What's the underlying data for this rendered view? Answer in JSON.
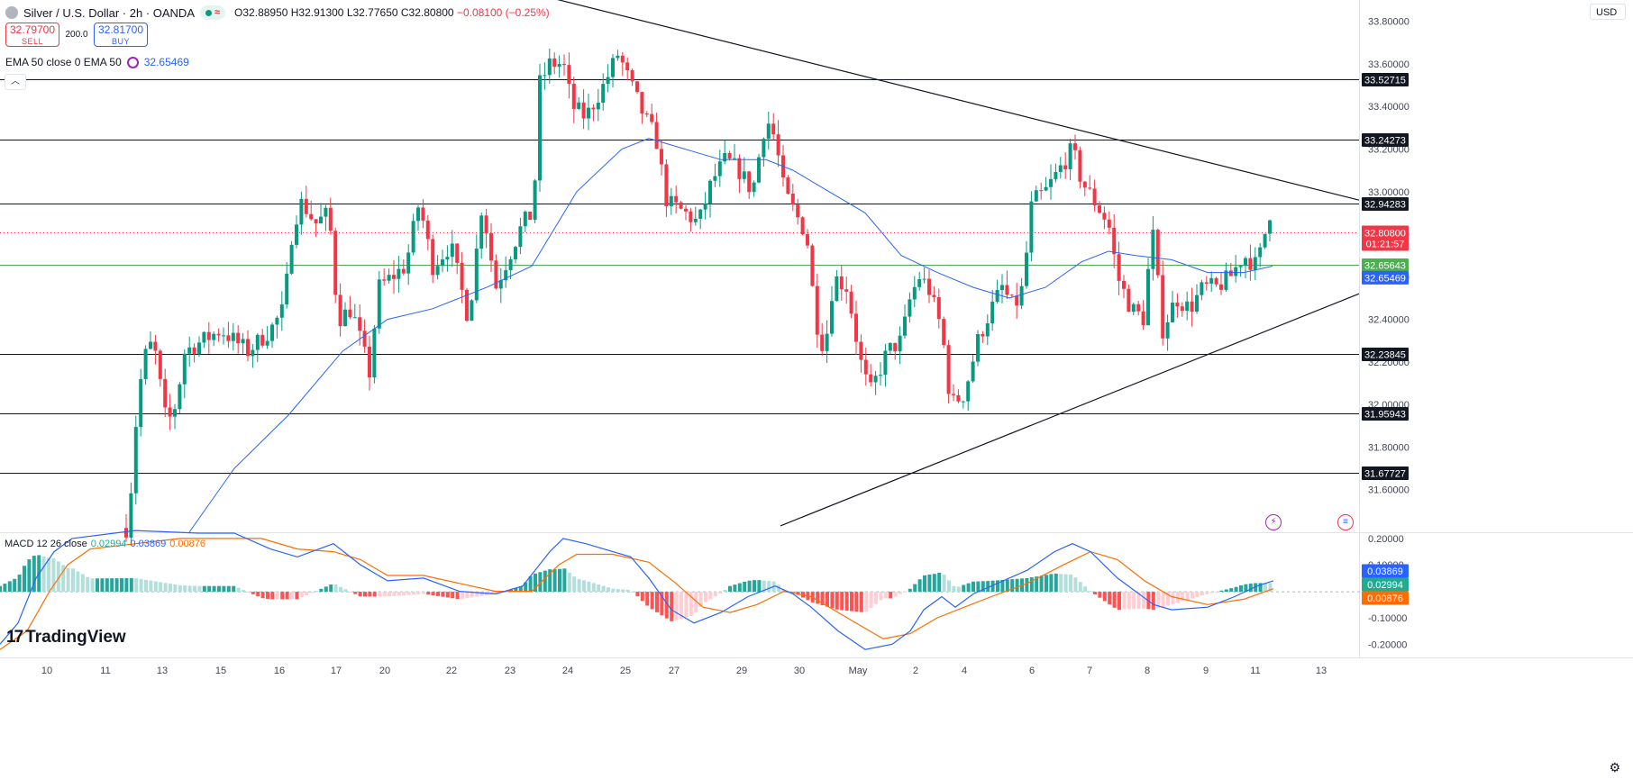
{
  "header": {
    "title": "Silver / U.S. Dollar · 2h · OANDA",
    "ohlc": "O32.88950 H32.91300 L32.77650 C32.80800",
    "change": "−0.08100 (−0.25%)"
  },
  "trade": {
    "sell_price": "32.79700",
    "sell_label": "SELL",
    "spread": "200.0",
    "buy_price": "32.81700",
    "buy_label": "BUY"
  },
  "indicators": {
    "ema_label": "EMA 50 close 0 EMA 50",
    "ema_value": "32.65469",
    "macd_label": "MACD 12 26 close",
    "macd_hist": "0.02994",
    "macd_line": "0.03869",
    "macd_signal": "0.00876"
  },
  "currency_button": "USD",
  "brand": "TradingView",
  "colors": {
    "up": "#089981",
    "down": "#f23645",
    "ema": "#2962ff",
    "macd": "#2962ff",
    "signal": "#ff6d00",
    "support_green": "#4caf50"
  },
  "chart_data": {
    "type": "candlestick",
    "instrument": "Silver / U.S. Dollar",
    "timeframe": "2h",
    "ylim": [
      31.4,
      33.9
    ],
    "y_ticks": [
      "33.80000",
      "33.60000",
      "33.40000",
      "33.20000",
      "33.00000",
      "32.80000",
      "32.60000",
      "32.40000",
      "32.20000",
      "32.00000",
      "31.80000",
      "31.60000"
    ],
    "x_ticks": [
      {
        "label": "10",
        "pos": 52
      },
      {
        "label": "11",
        "pos": 117
      },
      {
        "label": "13",
        "pos": 180
      },
      {
        "label": "15",
        "pos": 245
      },
      {
        "label": "16",
        "pos": 310
      },
      {
        "label": "17",
        "pos": 373
      },
      {
        "label": "20",
        "pos": 427
      },
      {
        "label": "22",
        "pos": 501
      },
      {
        "label": "23",
        "pos": 566
      },
      {
        "label": "24",
        "pos": 630
      },
      {
        "label": "25",
        "pos": 694
      },
      {
        "label": "27",
        "pos": 748
      },
      {
        "label": "29",
        "pos": 823
      },
      {
        "label": "30",
        "pos": 887
      },
      {
        "label": "May",
        "pos": 952
      },
      {
        "label": "2",
        "pos": 1016
      },
      {
        "label": "4",
        "pos": 1070
      },
      {
        "label": "6",
        "pos": 1145
      },
      {
        "label": "7",
        "pos": 1209
      },
      {
        "label": "8",
        "pos": 1273
      },
      {
        "label": "9",
        "pos": 1338
      },
      {
        "label": "11",
        "pos": 1393
      },
      {
        "label": "13",
        "pos": 1466
      }
    ],
    "horizontal_levels": [
      {
        "value": 33.52715,
        "label": "33.52715",
        "color": "#131722"
      },
      {
        "value": 33.24273,
        "label": "33.24273",
        "color": "#131722"
      },
      {
        "value": 32.94283,
        "label": "32.94283",
        "color": "#131722"
      },
      {
        "value": 32.65643,
        "label": "32.65643",
        "color": "#4caf50"
      },
      {
        "value": 32.23845,
        "label": "32.23845",
        "color": "#131722"
      },
      {
        "value": 31.95943,
        "label": "31.95943",
        "color": "#131722"
      },
      {
        "value": 31.67727,
        "label": "31.67727",
        "color": "#131722"
      }
    ],
    "last_price": {
      "value": 32.808,
      "label": "32.80800",
      "countdown": "01:21:57"
    },
    "ema_last": {
      "value": 32.65469,
      "label": "32.65469"
    },
    "trendlines": [
      {
        "from": [
          545,
          33.98
        ],
        "to": [
          1508,
          32.96
        ]
      },
      {
        "from": [
          866,
          31.43
        ],
        "to": [
          1508,
          32.52
        ]
      }
    ],
    "anchors": [
      [
        140,
        31.42
      ],
      [
        148,
        31.7
      ],
      [
        152,
        32.0
      ],
      [
        160,
        32.22
      ],
      [
        170,
        32.3
      ],
      [
        185,
        31.9
      ],
      [
        195,
        32.0
      ],
      [
        205,
        32.25
      ],
      [
        225,
        32.3
      ],
      [
        245,
        32.35
      ],
      [
        275,
        32.25
      ],
      [
        300,
        32.35
      ],
      [
        315,
        32.45
      ],
      [
        325,
        32.85
      ],
      [
        335,
        32.95
      ],
      [
        350,
        32.85
      ],
      [
        365,
        32.9
      ],
      [
        375,
        32.4
      ],
      [
        390,
        32.45
      ],
      [
        400,
        32.3
      ],
      [
        410,
        32.15
      ],
      [
        420,
        32.55
      ],
      [
        435,
        32.6
      ],
      [
        450,
        32.65
      ],
      [
        465,
        32.95
      ],
      [
        480,
        32.65
      ],
      [
        500,
        32.75
      ],
      [
        520,
        32.4
      ],
      [
        535,
        32.95
      ],
      [
        550,
        32.55
      ],
      [
        565,
        32.7
      ],
      [
        580,
        32.85
      ],
      [
        592,
        32.9
      ],
      [
        598,
        33.5
      ],
      [
        610,
        33.6
      ],
      [
        625,
        33.6
      ],
      [
        635,
        33.4
      ],
      [
        650,
        33.35
      ],
      [
        670,
        33.5
      ],
      [
        686,
        33.65
      ],
      [
        700,
        33.5
      ],
      [
        715,
        33.35
      ],
      [
        728,
        33.25
      ],
      [
        740,
        32.95
      ],
      [
        760,
        32.9
      ],
      [
        775,
        32.85
      ],
      [
        790,
        33.05
      ],
      [
        805,
        33.15
      ],
      [
        820,
        33.1
      ],
      [
        835,
        33.0
      ],
      [
        850,
        33.35
      ],
      [
        860,
        33.25
      ],
      [
        870,
        33.0
      ],
      [
        882,
        32.9
      ],
      [
        895,
        32.8
      ],
      [
        905,
        32.4
      ],
      [
        915,
        32.25
      ],
      [
        925,
        32.6
      ],
      [
        940,
        32.55
      ],
      [
        955,
        32.2
      ],
      [
        965,
        32.05
      ],
      [
        975,
        32.15
      ],
      [
        985,
        32.25
      ],
      [
        1000,
        32.3
      ],
      [
        1010,
        32.5
      ],
      [
        1020,
        32.6
      ],
      [
        1030,
        32.55
      ],
      [
        1045,
        32.35
      ],
      [
        1055,
        32.0
      ],
      [
        1070,
        32.05
      ],
      [
        1085,
        32.3
      ],
      [
        1100,
        32.45
      ],
      [
        1112,
        32.55
      ],
      [
        1125,
        32.45
      ],
      [
        1135,
        32.55
      ],
      [
        1145,
        32.95
      ],
      [
        1160,
        33.0
      ],
      [
        1175,
        33.1
      ],
      [
        1190,
        33.2
      ],
      [
        1200,
        33.05
      ],
      [
        1215,
        32.95
      ],
      [
        1230,
        32.85
      ],
      [
        1240,
        32.6
      ],
      [
        1255,
        32.45
      ],
      [
        1270,
        32.4
      ],
      [
        1278,
        32.85
      ],
      [
        1290,
        32.35
      ],
      [
        1305,
        32.5
      ],
      [
        1320,
        32.45
      ],
      [
        1335,
        32.55
      ],
      [
        1350,
        32.55
      ],
      [
        1365,
        32.6
      ],
      [
        1380,
        32.7
      ],
      [
        1395,
        32.65
      ],
      [
        1410,
        32.92
      ],
      [
        1413,
        32.81
      ]
    ],
    "ema_anchors": [
      [
        210,
        31.4
      ],
      [
        260,
        31.7
      ],
      [
        320,
        31.95
      ],
      [
        380,
        32.25
      ],
      [
        430,
        32.4
      ],
      [
        480,
        32.45
      ],
      [
        540,
        32.55
      ],
      [
        590,
        32.65
      ],
      [
        640,
        33.0
      ],
      [
        690,
        33.2
      ],
      [
        720,
        33.25
      ],
      [
        760,
        33.2
      ],
      [
        800,
        33.15
      ],
      [
        850,
        33.15
      ],
      [
        880,
        33.1
      ],
      [
        920,
        33.0
      ],
      [
        960,
        32.9
      ],
      [
        1000,
        32.7
      ],
      [
        1040,
        32.62
      ],
      [
        1080,
        32.55
      ],
      [
        1120,
        32.5
      ],
      [
        1160,
        32.55
      ],
      [
        1200,
        32.67
      ],
      [
        1230,
        32.72
      ],
      [
        1260,
        32.7
      ],
      [
        1300,
        32.68
      ],
      [
        1340,
        32.62
      ],
      [
        1380,
        32.62
      ],
      [
        1412,
        32.65
      ]
    ],
    "macd": {
      "ylim": [
        -0.25,
        0.22
      ],
      "y_ticks": [
        "0.20000",
        "0.10000",
        "-0.10000",
        "-0.20000"
      ],
      "macd_line": [
        [
          0,
          -0.2
        ],
        [
          20,
          -0.12
        ],
        [
          40,
          0.05
        ],
        [
          60,
          0.15
        ],
        [
          80,
          0.2
        ],
        [
          150,
          0.23
        ],
        [
          220,
          0.22
        ],
        [
          260,
          0.22
        ],
        [
          300,
          0.16
        ],
        [
          330,
          0.13
        ],
        [
          370,
          0.18
        ],
        [
          400,
          0.1
        ],
        [
          430,
          0.04
        ],
        [
          470,
          0.05
        ],
        [
          510,
          0.0
        ],
        [
          550,
          -0.01
        ],
        [
          580,
          0.02
        ],
        [
          610,
          0.15
        ],
        [
          625,
          0.2
        ],
        [
          650,
          0.18
        ],
        [
          700,
          0.13
        ],
        [
          720,
          0.05
        ],
        [
          745,
          -0.07
        ],
        [
          770,
          -0.12
        ],
        [
          800,
          -0.08
        ],
        [
          830,
          -0.02
        ],
        [
          860,
          0.02
        ],
        [
          880,
          -0.01
        ],
        [
          900,
          -0.06
        ],
        [
          930,
          -0.15
        ],
        [
          960,
          -0.22
        ],
        [
          990,
          -0.2
        ],
        [
          1010,
          -0.15
        ],
        [
          1025,
          -0.07
        ],
        [
          1045,
          -0.02
        ],
        [
          1060,
          -0.06
        ],
        [
          1080,
          -0.01
        ],
        [
          1100,
          0.02
        ],
        [
          1140,
          0.08
        ],
        [
          1170,
          0.15
        ],
        [
          1190,
          0.18
        ],
        [
          1210,
          0.15
        ],
        [
          1240,
          0.05
        ],
        [
          1260,
          0.0
        ],
        [
          1280,
          -0.05
        ],
        [
          1300,
          -0.07
        ],
        [
          1340,
          -0.06
        ],
        [
          1370,
          -0.02
        ],
        [
          1395,
          0.02
        ],
        [
          1413,
          0.04
        ]
      ],
      "signal_line": [
        [
          0,
          -0.22
        ],
        [
          30,
          -0.15
        ],
        [
          55,
          0.0
        ],
        [
          75,
          0.1
        ],
        [
          100,
          0.16
        ],
        [
          200,
          0.2
        ],
        [
          250,
          0.2
        ],
        [
          290,
          0.2
        ],
        [
          330,
          0.16
        ],
        [
          370,
          0.15
        ],
        [
          400,
          0.12
        ],
        [
          430,
          0.06
        ],
        [
          470,
          0.06
        ],
        [
          510,
          0.03
        ],
        [
          550,
          0.0
        ],
        [
          590,
          0.0
        ],
        [
          620,
          0.1
        ],
        [
          640,
          0.14
        ],
        [
          680,
          0.14
        ],
        [
          720,
          0.11
        ],
        [
          750,
          0.03
        ],
        [
          780,
          -0.06
        ],
        [
          810,
          -0.08
        ],
        [
          840,
          -0.05
        ],
        [
          870,
          0.0
        ],
        [
          900,
          -0.02
        ],
        [
          940,
          -0.1
        ],
        [
          980,
          -0.18
        ],
        [
          1010,
          -0.16
        ],
        [
          1040,
          -0.1
        ],
        [
          1070,
          -0.06
        ],
        [
          1100,
          -0.02
        ],
        [
          1140,
          0.03
        ],
        [
          1180,
          0.1
        ],
        [
          1210,
          0.15
        ],
        [
          1240,
          0.12
        ],
        [
          1270,
          0.04
        ],
        [
          1300,
          -0.02
        ],
        [
          1340,
          -0.05
        ],
        [
          1380,
          -0.03
        ],
        [
          1413,
          0.01
        ]
      ],
      "last": {
        "macd": {
          "value": 0.03869,
          "label": "0.03869"
        },
        "hist": {
          "value": 0.02994,
          "label": "0.02994"
        },
        "signal": {
          "value": 0.00876,
          "label": "0.00876"
        }
      }
    }
  }
}
